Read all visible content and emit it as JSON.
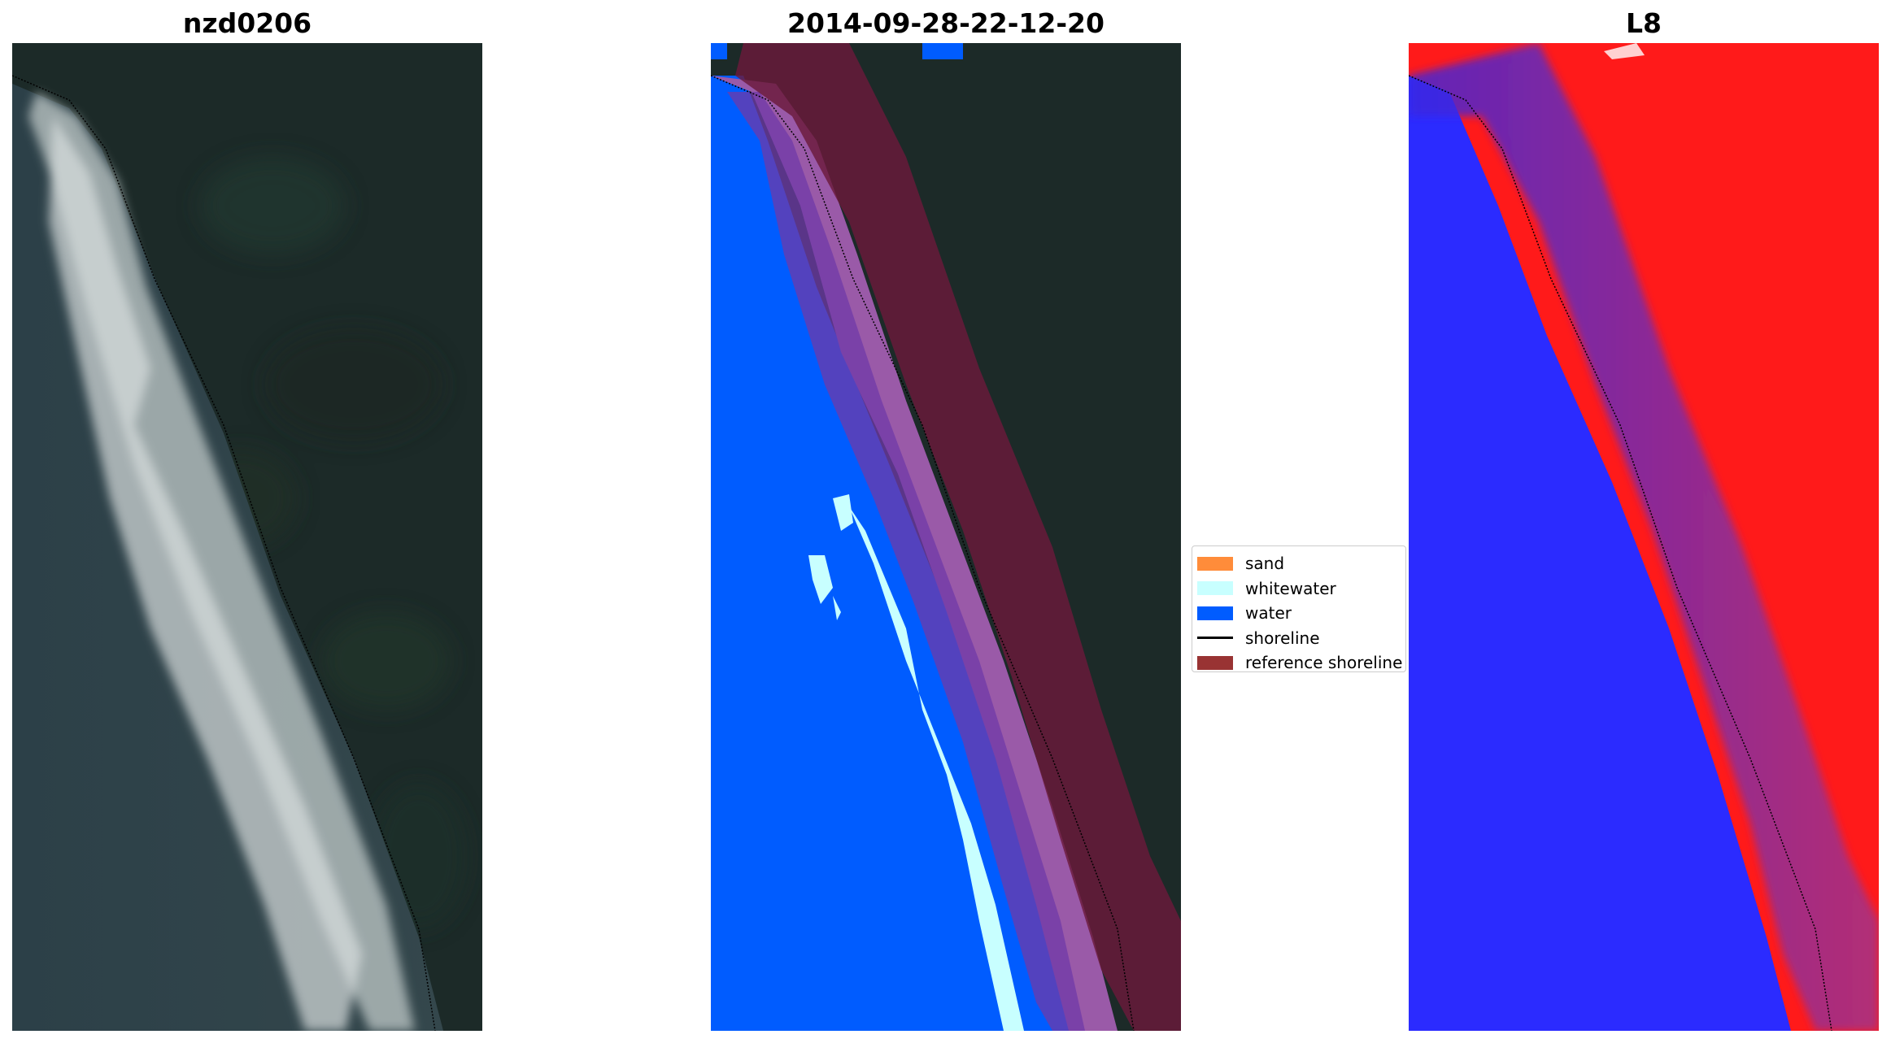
{
  "panels": [
    {
      "title": "nzd0206",
      "kind": "rgb-image"
    },
    {
      "title": "2014-09-28-22-12-20",
      "kind": "classified-image"
    },
    {
      "title": "L8",
      "kind": "mndwi-image"
    }
  ],
  "legend": {
    "items": [
      {
        "label": "sand",
        "color": "#ff8c3a",
        "type": "patch"
      },
      {
        "label": "whitewater",
        "color": "#c8ffff",
        "type": "patch"
      },
      {
        "label": "water",
        "color": "#005cff",
        "type": "patch"
      },
      {
        "label": "shoreline",
        "color": "#000000",
        "type": "line"
      },
      {
        "label": "reference shoreline",
        "color": "#993333",
        "type": "patch"
      }
    ]
  }
}
